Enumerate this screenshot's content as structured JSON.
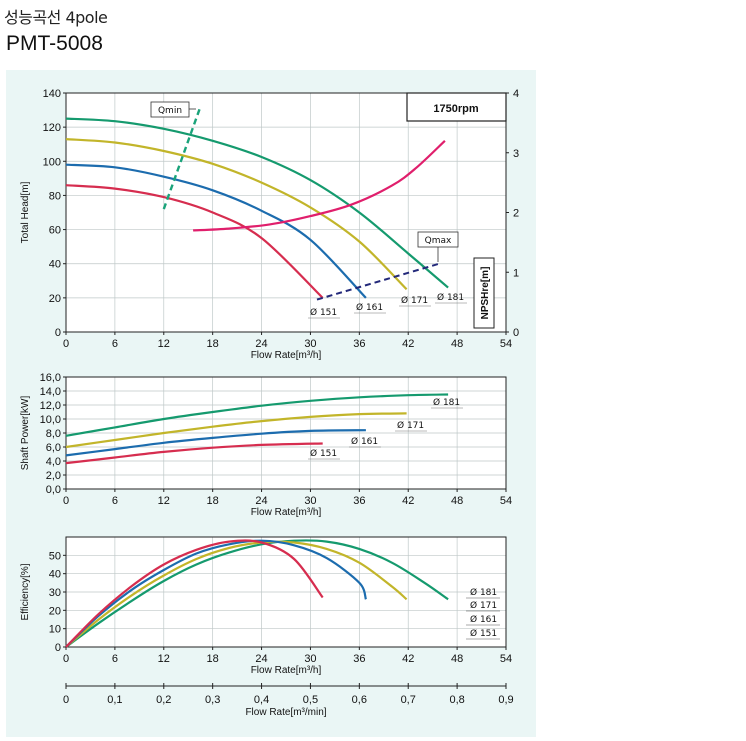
{
  "header": {
    "title": "성능곡선 4pole",
    "model": "PMT-5008"
  },
  "chart_data": [
    {
      "id": "head",
      "type": "line",
      "ylabel": "Total Head[m]",
      "xlabel": "Flow Rate[m³/h]",
      "xlim": [
        0,
        54
      ],
      "ylim": [
        0,
        140
      ],
      "xticks": [
        "0",
        "6",
        "12",
        "18",
        "24",
        "30",
        "36",
        "42",
        "48",
        "54"
      ],
      "yticks": [
        "0",
        "20",
        "40",
        "60",
        "80",
        "100",
        "120",
        "140"
      ],
      "y2label": "NPSHre[m]",
      "y2lim": [
        0,
        4
      ],
      "y2ticks": [
        "0",
        "1",
        "2",
        "3",
        "4"
      ],
      "speed": "1750rpm",
      "qmin_label": "Qmin",
      "qmax_label": "Qmax",
      "series": [
        {
          "name": "Ø 181",
          "color": "#159a6e",
          "x": [
            0,
            6,
            12,
            18,
            24,
            30,
            36,
            42,
            46.9
          ],
          "y": [
            125,
            123.5,
            119,
            112,
            102.5,
            89,
            70,
            46,
            26
          ]
        },
        {
          "name": "Ø 171",
          "color": "#c2b52a",
          "x": [
            0,
            6,
            12,
            18,
            24,
            30,
            36,
            41.8
          ],
          "y": [
            113,
            111,
            106,
            98.5,
            87.5,
            73,
            53,
            25
          ]
        },
        {
          "name": "Ø 161",
          "color": "#1c6cae",
          "x": [
            0,
            6,
            12,
            18,
            24,
            30,
            36.8
          ],
          "y": [
            98,
            96.5,
            91,
            83,
            71,
            54,
            20
          ]
        },
        {
          "name": "Ø 151",
          "color": "#d62d4f",
          "x": [
            0,
            6,
            12,
            18,
            24,
            31.5
          ],
          "y": [
            86,
            84,
            79,
            70,
            55,
            20
          ]
        }
      ],
      "npsh": {
        "color": "#e01f6c",
        "x": [
          15.6,
          20,
          25,
          30,
          35,
          40,
          43,
          46.5
        ],
        "y": [
          1.7,
          1.73,
          1.8,
          1.94,
          2.13,
          2.45,
          2.75,
          3.2
        ]
      },
      "qmin": {
        "color": "#1aa37a",
        "x": [
          12,
          16.5
        ],
        "y": [
          72,
          132
        ]
      },
      "qmax": {
        "color": "#23297a",
        "x": [
          30.8,
          45.8
        ],
        "y": [
          19,
          40
        ]
      }
    },
    {
      "id": "power",
      "type": "line",
      "ylabel": "Shaft Power[kW]",
      "xlabel": "Flow Rate[m³/h]",
      "xlim": [
        0,
        54
      ],
      "ylim": [
        0,
        16
      ],
      "xticks": [
        "0",
        "6",
        "12",
        "18",
        "24",
        "30",
        "36",
        "42",
        "48",
        "54"
      ],
      "yticks": [
        "0,0",
        "2,0",
        "4,0",
        "6,0",
        "8,0",
        "10,0",
        "12,0",
        "14,0",
        "16,0"
      ],
      "series": [
        {
          "name": "Ø 181",
          "color": "#159a6e",
          "x": [
            0,
            6,
            12,
            18,
            24,
            30,
            36,
            42,
            46.9
          ],
          "y": [
            7.6,
            8.8,
            10.0,
            11.0,
            11.9,
            12.6,
            13.1,
            13.4,
            13.5
          ]
        },
        {
          "name": "Ø 171",
          "color": "#c2b52a",
          "x": [
            0,
            6,
            12,
            18,
            24,
            30,
            36,
            41.8
          ],
          "y": [
            6.0,
            7.0,
            8.0,
            8.9,
            9.7,
            10.3,
            10.7,
            10.8
          ]
        },
        {
          "name": "Ø 161",
          "color": "#1c6cae",
          "x": [
            0,
            6,
            12,
            18,
            24,
            30,
            36.8
          ],
          "y": [
            4.8,
            5.7,
            6.6,
            7.3,
            7.9,
            8.3,
            8.4
          ]
        },
        {
          "name": "Ø 151",
          "color": "#d62d4f",
          "x": [
            0,
            6,
            12,
            18,
            24,
            31.5
          ],
          "y": [
            3.7,
            4.5,
            5.3,
            5.9,
            6.3,
            6.5
          ]
        }
      ]
    },
    {
      "id": "efficiency",
      "type": "line",
      "ylabel": "Efficiency[%]",
      "xlabel": "Flow Rate[m³/h]",
      "xlim": [
        0,
        54
      ],
      "ylim": [
        0,
        60
      ],
      "xticks": [
        "0",
        "6",
        "12",
        "18",
        "24",
        "30",
        "36",
        "42",
        "48",
        "54"
      ],
      "yticks": [
        "0",
        "10",
        "20",
        "30",
        "40",
        "50"
      ],
      "series": [
        {
          "name": "Ø 181",
          "color": "#159a6e",
          "x": [
            0,
            4,
            8,
            12,
            16,
            20,
            24,
            28,
            32,
            36,
            40,
            44,
            46.9
          ],
          "y": [
            0,
            13,
            25,
            36,
            45,
            51.5,
            56,
            58,
            57.5,
            53.5,
            46,
            35,
            26
          ]
        },
        {
          "name": "Ø 171",
          "color": "#c2b52a",
          "x": [
            0,
            4,
            8,
            12,
            16,
            20,
            24,
            28,
            32,
            36,
            40,
            41.8
          ],
          "y": [
            0,
            15,
            28,
            39,
            48,
            54,
            57,
            57,
            53.5,
            46,
            33,
            26
          ]
        },
        {
          "name": "Ø 161",
          "color": "#1c6cae",
          "x": [
            0,
            4,
            8,
            12,
            16,
            20,
            24,
            28,
            32,
            36,
            36.8
          ],
          "y": [
            0,
            17,
            31,
            42,
            51,
            56,
            58,
            55.5,
            48.5,
            35,
            26
          ]
        },
        {
          "name": "Ø 151",
          "color": "#d62d4f",
          "x": [
            0,
            4,
            8,
            12,
            16,
            20,
            24,
            28,
            31.5
          ],
          "y": [
            0,
            18,
            33,
            45,
            53,
            57.5,
            57,
            48,
            27
          ]
        }
      ]
    },
    {
      "id": "flow-min-axis",
      "type": "axis",
      "xlabel": "Flow Rate[m³/min]",
      "xlim": [
        0,
        0.9
      ],
      "xticks": [
        "0",
        "0,1",
        "0,2",
        "0,3",
        "0,4",
        "0,5",
        "0,6",
        "0,7",
        "0,8",
        "0,9"
      ]
    }
  ]
}
